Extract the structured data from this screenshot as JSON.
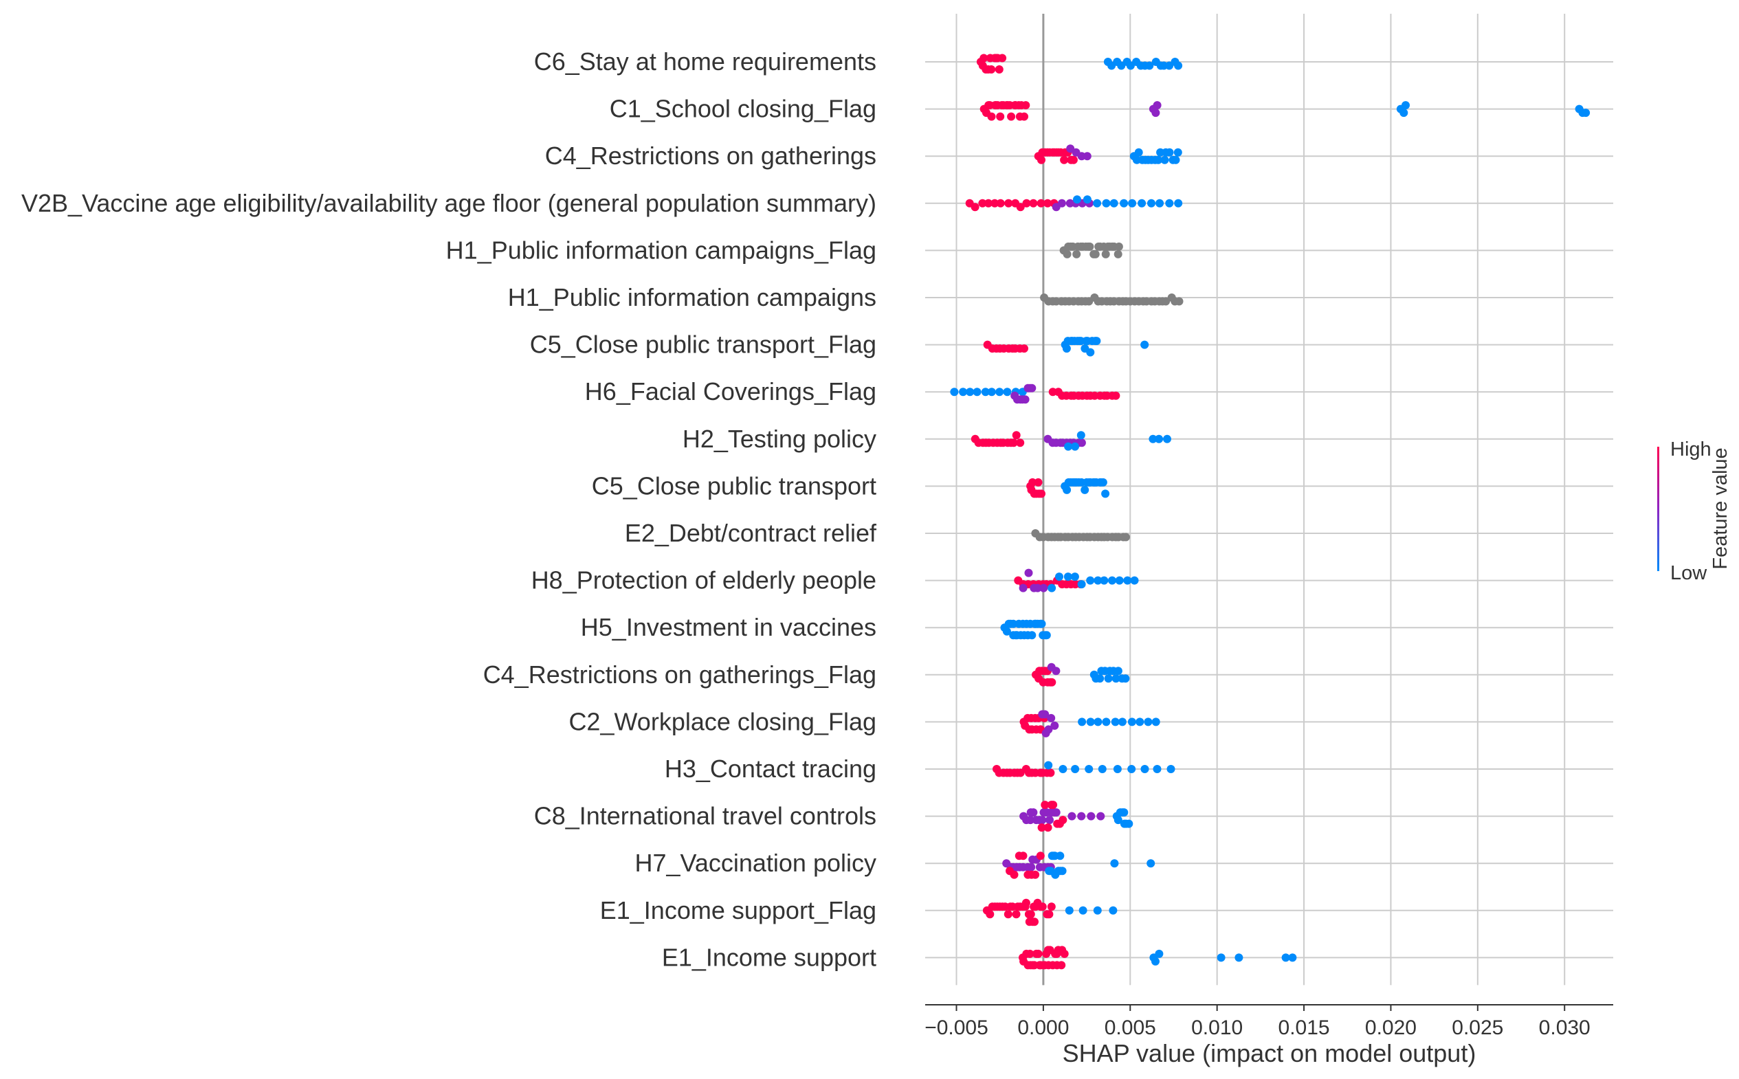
{
  "chart_data": {
    "type": "scatter",
    "subtype": "shap-beeswarm",
    "xlabel": "SHAP value (impact on model output)",
    "xlim": [
      -0.0068,
      0.0328
    ],
    "xticks": [
      -0.005,
      0.0,
      0.005,
      0.01,
      0.015,
      0.02,
      0.025,
      0.03
    ],
    "xtick_labels": [
      "−0.005",
      "0.000",
      "0.005",
      "0.010",
      "0.015",
      "0.020",
      "0.025",
      "0.030"
    ],
    "grid": "vertical",
    "colorbar": {
      "title": "Feature value",
      "high_label": "High",
      "low_label": "Low",
      "position": "right",
      "high_color": "#ff0052",
      "mid_color": "#8e24c4",
      "low_color": "#008bfb",
      "na_color": "#808080"
    },
    "features": [
      {
        "name": "C6_Stay at home requirements",
        "groups": [
          {
            "v": [
              -0.0036,
              -0.0024
            ],
            "c": "high",
            "n": 12
          },
          {
            "v": [
              0.0037,
              0.0078
            ],
            "c": "low",
            "n": 16
          }
        ]
      },
      {
        "name": "C1_School closing_Flag",
        "groups": [
          {
            "v": [
              -0.0034,
              -0.001
            ],
            "c": "high",
            "n": 22
          },
          {
            "v": [
              0.0063,
              0.0066
            ],
            "c": "mid",
            "n": 3
          },
          {
            "v": [
              0.0206,
              0.0209
            ],
            "c": "low",
            "n": 3
          },
          {
            "v": [
              0.0309,
              0.0312
            ],
            "c": "low",
            "n": 3
          }
        ]
      },
      {
        "name": "C4_Restrictions on gatherings",
        "groups": [
          {
            "v": [
              -0.0003,
              0.0017
            ],
            "c": "high",
            "n": 16
          },
          {
            "v": [
              0.0015,
              0.0025
            ],
            "c": "mid",
            "n": 4
          },
          {
            "v": [
              0.0052,
              0.0078
            ],
            "c": "low",
            "n": 16
          }
        ]
      },
      {
        "name": "V2B_Vaccine age eligibility/availability age floor (general population summary)",
        "groups": [
          {
            "v": [
              -0.0043,
              0.0006
            ],
            "c": "high",
            "n": 14
          },
          {
            "v": [
              0.0007,
              0.0027
            ],
            "c": "mid",
            "n": 6
          },
          {
            "v": [
              0.002,
              0.0078
            ],
            "c": "low",
            "n": 12
          }
        ]
      },
      {
        "name": "H1_Public information campaigns_Flag",
        "groups": [
          {
            "v": [
              0.0012,
              0.0044
            ],
            "c": "na",
            "n": 24
          }
        ]
      },
      {
        "name": "H1_Public information campaigns",
        "groups": [
          {
            "v": [
              0.0001,
              0.0078
            ],
            "c": "na",
            "n": 34
          }
        ]
      },
      {
        "name": "C5_Close public transport_Flag",
        "groups": [
          {
            "v": [
              -0.0032,
              -0.0011
            ],
            "c": "high",
            "n": 10
          },
          {
            "v": [
              0.0012,
              0.0031
            ],
            "c": "low",
            "n": 16
          },
          {
            "v": [
              0.0058,
              0.0058
            ],
            "c": "low",
            "n": 1
          }
        ]
      },
      {
        "name": "H6_Facial Coverings_Flag",
        "groups": [
          {
            "v": [
              -0.0051,
              -0.0012
            ],
            "c": "low",
            "n": 10
          },
          {
            "v": [
              -0.0016,
              -0.0006
            ],
            "c": "mid",
            "n": 8
          },
          {
            "v": [
              0.0006,
              0.0042
            ],
            "c": "high",
            "n": 16
          }
        ]
      },
      {
        "name": "H2_Testing policy",
        "groups": [
          {
            "v": [
              -0.0039,
              -0.0013
            ],
            "c": "high",
            "n": 14
          },
          {
            "v": [
              0.0003,
              0.0022
            ],
            "c": "mid",
            "n": 10
          },
          {
            "v": [
              0.0014,
              0.0022
            ],
            "c": "low",
            "n": 3
          },
          {
            "v": [
              0.0063,
              0.0071
            ],
            "c": "low",
            "n": 3
          }
        ]
      },
      {
        "name": "C5_Close public transport",
        "groups": [
          {
            "v": [
              -0.0008,
              -0.0001
            ],
            "c": "high",
            "n": 8
          },
          {
            "v": [
              0.0012,
              0.0036
            ],
            "c": "low",
            "n": 20
          }
        ]
      },
      {
        "name": "E2_Debt/contract relief",
        "groups": [
          {
            "v": [
              -0.0004,
              0.0048
            ],
            "c": "na",
            "n": 26
          }
        ]
      },
      {
        "name": "H8_Protection of elderly people",
        "groups": [
          {
            "v": [
              -0.0014,
              0.0021
            ],
            "c": "high",
            "n": 14
          },
          {
            "v": [
              -0.0011,
              0.0
            ],
            "c": "mid",
            "n": 5
          },
          {
            "v": [
              0.0005,
              0.0053
            ],
            "c": "low",
            "n": 12
          }
        ]
      },
      {
        "name": "H5_Investment in vaccines",
        "groups": [
          {
            "v": [
              -0.0022,
              0.0002
            ],
            "c": "low",
            "n": 24
          }
        ]
      },
      {
        "name": "C4_Restrictions on gatherings_Flag",
        "groups": [
          {
            "v": [
              -0.0004,
              0.0005
            ],
            "c": "high",
            "n": 10
          },
          {
            "v": [
              0.0005,
              0.0007
            ],
            "c": "mid",
            "n": 2
          },
          {
            "v": [
              0.0029,
              0.0047
            ],
            "c": "low",
            "n": 12
          }
        ]
      },
      {
        "name": "C2_Workplace closing_Flag",
        "groups": [
          {
            "v": [
              -0.0011,
              0.0
            ],
            "c": "high",
            "n": 12
          },
          {
            "v": [
              -0.0001,
              0.0006
            ],
            "c": "mid",
            "n": 6
          },
          {
            "v": [
              0.0022,
              0.0065
            ],
            "c": "low",
            "n": 10
          }
        ]
      },
      {
        "name": "H3_Contact tracing",
        "groups": [
          {
            "v": [
              -0.0027,
              0.0004
            ],
            "c": "high",
            "n": 16
          },
          {
            "v": [
              0.0003,
              0.0074
            ],
            "c": "low",
            "n": 10
          }
        ]
      },
      {
        "name": "C8_International travel controls",
        "groups": [
          {
            "v": [
              -0.0011,
              0.0008
            ],
            "c": "mid",
            "n": 14
          },
          {
            "v": [
              -0.0001,
              0.0011
            ],
            "c": "high",
            "n": 8
          },
          {
            "v": [
              0.0017,
              0.0033
            ],
            "c": "mid",
            "n": 4
          },
          {
            "v": [
              0.0042,
              0.0049
            ],
            "c": "low",
            "n": 8
          }
        ]
      },
      {
        "name": "H7_Vaccination policy",
        "groups": [
          {
            "v": [
              -0.0021,
              0.0004
            ],
            "c": "mid",
            "n": 14
          },
          {
            "v": [
              -0.0019,
              -0.0002
            ],
            "c": "high",
            "n": 8
          },
          {
            "v": [
              0.0003,
              0.0011
            ],
            "c": "low",
            "n": 10
          },
          {
            "v": [
              0.0041,
              0.0062
            ],
            "c": "low",
            "n": 2
          }
        ]
      },
      {
        "name": "E1_Income support_Flag",
        "groups": [
          {
            "v": [
              -0.0032,
              -0.0004
            ],
            "c": "high",
            "n": 20
          },
          {
            "v": [
              -0.001,
              0.0005
            ],
            "c": "high",
            "n": 10
          },
          {
            "v": [
              0.0015,
              0.004
            ],
            "c": "low",
            "n": 4
          }
        ]
      },
      {
        "name": "E1_Income support",
        "groups": [
          {
            "v": [
              -0.0012,
              0.0012
            ],
            "c": "high",
            "n": 26
          },
          {
            "v": [
              0.0063,
              0.0067
            ],
            "c": "low",
            "n": 3
          },
          {
            "v": [
              0.0102,
              0.0113
            ],
            "c": "low",
            "n": 2
          },
          {
            "v": [
              0.014,
              0.0143
            ],
            "c": "low",
            "n": 2
          }
        ]
      }
    ]
  }
}
